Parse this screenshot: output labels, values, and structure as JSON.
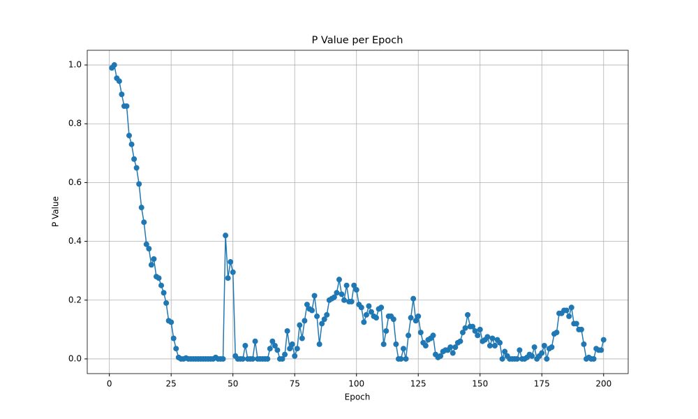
{
  "chart_data": {
    "type": "line",
    "title": "P Value per Epoch",
    "xlabel": "Epoch",
    "ylabel": "P Value",
    "x": [
      1,
      2,
      3,
      4,
      5,
      6,
      7,
      8,
      9,
      10,
      11,
      12,
      13,
      14,
      15,
      16,
      17,
      18,
      19,
      20,
      21,
      22,
      23,
      24,
      25,
      26,
      27,
      28,
      29,
      30,
      31,
      32,
      33,
      34,
      35,
      36,
      37,
      38,
      39,
      40,
      41,
      42,
      43,
      44,
      45,
      46,
      47,
      48,
      49,
      50,
      51,
      52,
      53,
      54,
      55,
      56,
      57,
      58,
      59,
      60,
      61,
      62,
      63,
      64,
      65,
      66,
      67,
      68,
      69,
      70,
      71,
      72,
      73,
      74,
      75,
      76,
      77,
      78,
      79,
      80,
      81,
      82,
      83,
      84,
      85,
      86,
      87,
      88,
      89,
      90,
      91,
      92,
      93,
      94,
      95,
      96,
      97,
      98,
      99,
      100,
      101,
      102,
      103,
      104,
      105,
      106,
      107,
      108,
      109,
      110,
      111,
      112,
      113,
      114,
      115,
      116,
      117,
      118,
      119,
      120,
      121,
      122,
      123,
      124,
      125,
      126,
      127,
      128,
      129,
      130,
      131,
      132,
      133,
      134,
      135,
      136,
      137,
      138,
      139,
      140,
      141,
      142,
      143,
      144,
      145,
      146,
      147,
      148,
      149,
      150,
      151,
      152,
      153,
      154,
      155,
      156,
      157,
      158,
      159,
      160,
      161,
      162,
      163,
      164,
      165,
      166,
      167,
      168,
      169,
      170,
      171,
      172,
      173,
      174,
      175,
      176,
      177,
      178,
      179,
      180,
      181,
      182,
      183,
      184,
      185,
      186,
      187,
      188,
      189,
      190,
      191,
      192,
      193,
      194,
      195,
      196,
      197,
      198,
      199,
      200
    ],
    "series": [
      {
        "name": "P Value",
        "color": "#1f77b4",
        "values": [
          0.99,
          1.0,
          0.955,
          0.945,
          0.9,
          0.86,
          0.86,
          0.76,
          0.73,
          0.68,
          0.65,
          0.595,
          0.515,
          0.465,
          0.39,
          0.375,
          0.32,
          0.34,
          0.28,
          0.275,
          0.25,
          0.225,
          0.19,
          0.13,
          0.125,
          0.07,
          0.035,
          0.005,
          0,
          0,
          0.003,
          0,
          0,
          0,
          0,
          0,
          0,
          0,
          0,
          0,
          0,
          0,
          0.005,
          0,
          0,
          0,
          0.42,
          0.275,
          0.33,
          0.295,
          0.01,
          0,
          0,
          0,
          0.045,
          0,
          0,
          0,
          0.06,
          0,
          0,
          0,
          0,
          0,
          0.035,
          0.06,
          0.045,
          0.03,
          0,
          0,
          0.015,
          0.095,
          0.035,
          0.05,
          0.01,
          0.035,
          0.115,
          0.07,
          0.13,
          0.185,
          0.17,
          0.165,
          0.215,
          0.145,
          0.05,
          0.12,
          0.135,
          0.15,
          0.2,
          0.205,
          0.21,
          0.225,
          0.27,
          0.22,
          0.2,
          0.25,
          0.195,
          0.195,
          0.25,
          0.235,
          0.185,
          0.175,
          0.125,
          0.15,
          0.18,
          0.16,
          0.145,
          0.14,
          0.17,
          0.175,
          0.05,
          0.095,
          0.145,
          0.145,
          0.135,
          0.05,
          0,
          0,
          0.035,
          0,
          0.08,
          0.14,
          0.205,
          0.13,
          0.145,
          0.09,
          0.055,
          0.045,
          0.065,
          0.07,
          0.08,
          0.015,
          0.005,
          0.01,
          0.025,
          0.03,
          0.03,
          0.04,
          0.02,
          0.04,
          0.055,
          0.06,
          0.09,
          0.105,
          0.15,
          0.11,
          0.11,
          0.095,
          0.08,
          0.1,
          0.06,
          0.065,
          0.075,
          0.045,
          0.07,
          0.045,
          0.065,
          0.055,
          0,
          0.025,
          0.01,
          0,
          0,
          0,
          0,
          0.03,
          0,
          0,
          0.005,
          0.015,
          0.01,
          0.04,
          0,
          0.01,
          0.02,
          0.045,
          0,
          0.035,
          0.04,
          0.085,
          0.09,
          0.155,
          0.155,
          0.165,
          0.165,
          0.145,
          0.175,
          0.12,
          0.12,
          0.1,
          0.1,
          0.05,
          0,
          0.005,
          0,
          0,
          0.035,
          0.03,
          0.03,
          0.065
        ]
      }
    ],
    "xlim": [
      -8.95,
      209.95
    ],
    "xticks": [
      0,
      25,
      50,
      75,
      100,
      125,
      150,
      175,
      200
    ],
    "ylim": [
      -0.05,
      1.05
    ],
    "yticks": [
      {
        "value": 0,
        "label": "0.0"
      },
      0.2,
      0.4,
      0.6,
      0.8,
      {
        "value": 1,
        "label": "1.0"
      }
    ],
    "grid": true
  }
}
